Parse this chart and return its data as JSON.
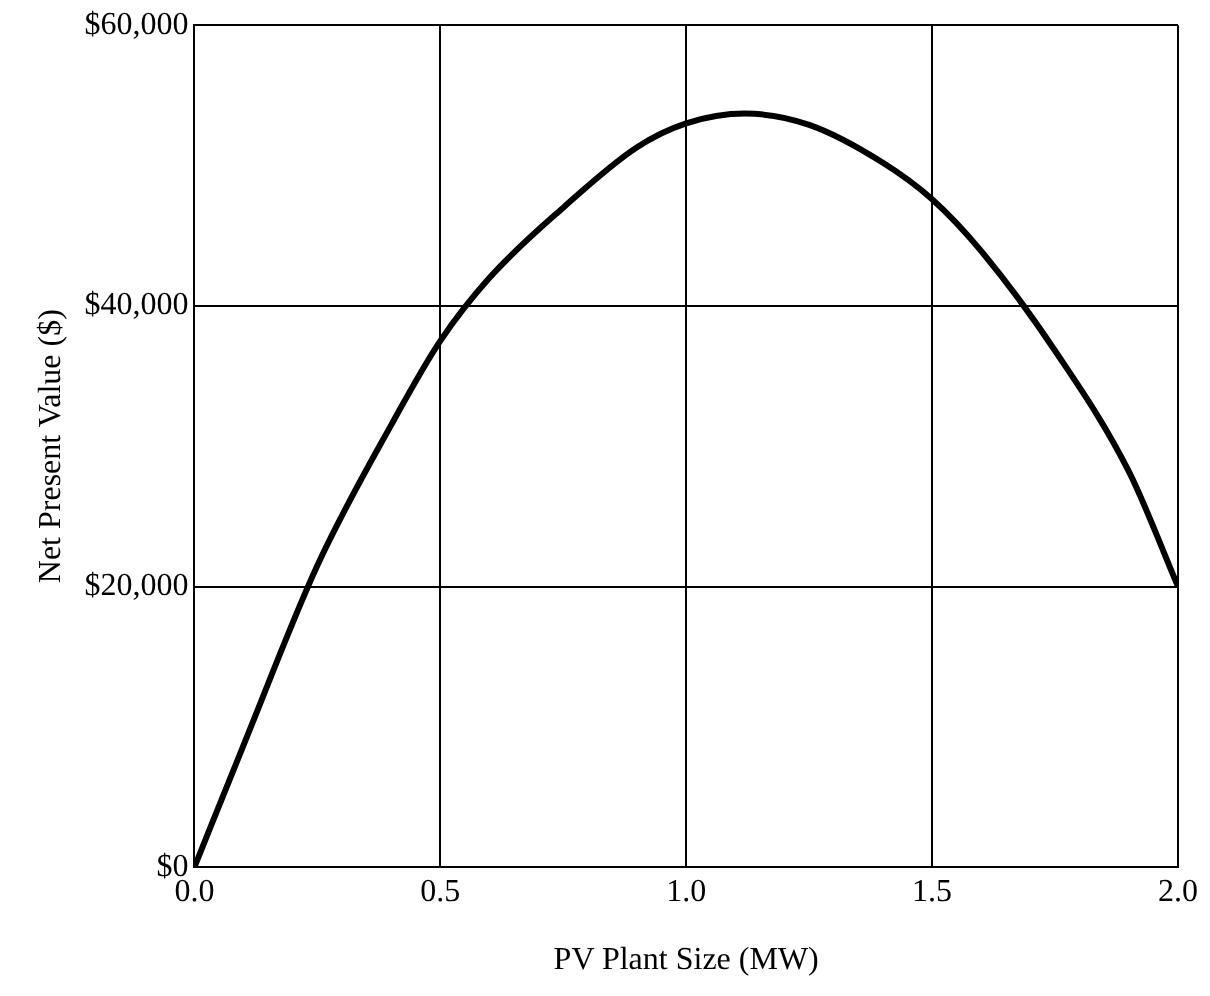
{
  "chart_data": {
    "type": "line",
    "xlabel": "PV Plant Size (MW)",
    "ylabel": "Net Present Value ($)",
    "x": [
      0,
      0.1,
      0.25,
      0.4,
      0.5,
      0.6,
      0.75,
      0.9,
      1.0,
      1.12,
      1.25,
      1.4,
      1.5,
      1.6,
      1.75,
      1.9,
      2.0
    ],
    "series": [
      {
        "color": "#000000",
        "values": [
          0,
          8700,
          21500,
          31500,
          37500,
          42000,
          47000,
          51300,
          53000,
          53700,
          52900,
          50200,
          47600,
          43900,
          36800,
          28200,
          20000
        ]
      }
    ],
    "xlim": [
      0,
      2
    ],
    "xticks": [
      {
        "value": 0,
        "label": "0.0"
      },
      {
        "value": 0.5,
        "label": "0.5"
      },
      {
        "value": 1,
        "label": "1.0"
      },
      {
        "value": 1.5,
        "label": "1.5"
      },
      {
        "value": 2,
        "label": "2.0"
      }
    ],
    "ylim": [
      0,
      60000
    ],
    "yticks": [
      {
        "value": 0,
        "label": "$0"
      },
      {
        "value": 20000,
        "label": "$20,000"
      },
      {
        "value": 40000,
        "label": "$40,000"
      },
      {
        "value": 60000,
        "label": "$60,000"
      }
    ],
    "grid": true,
    "legend": false,
    "marker": "none",
    "line_style": "solid"
  }
}
